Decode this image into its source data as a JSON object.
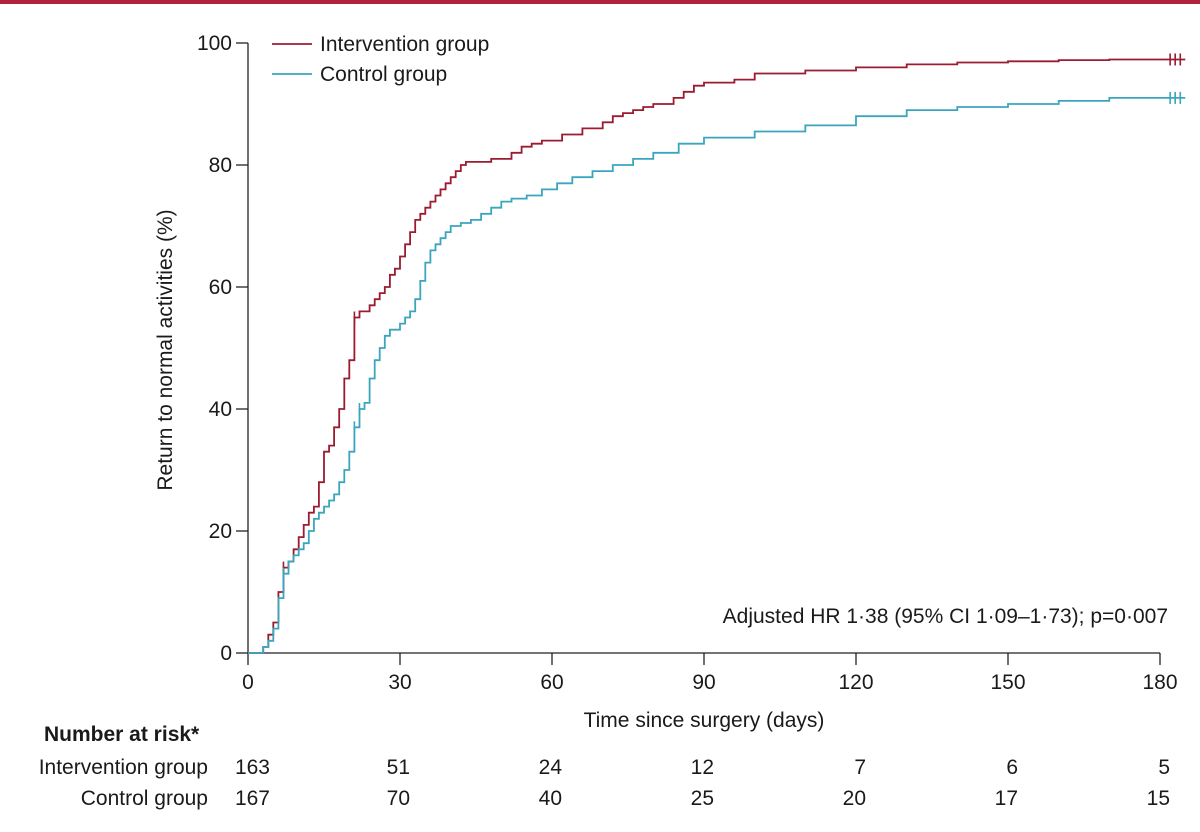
{
  "chart_data": {
    "type": "line",
    "step": true,
    "xlabel": "Time since surgery (days)",
    "ylabel": "Return to normal activities (%)",
    "xlim": [
      0,
      180
    ],
    "ylim": [
      0,
      100
    ],
    "xticks": [
      0,
      30,
      60,
      90,
      120,
      150,
      180
    ],
    "yticks": [
      0,
      20,
      40,
      60,
      80,
      100
    ],
    "grid": false,
    "legend_position": "top-left",
    "annotation": "Adjusted HR 1·38 (95% CI 1·09–1·73); p=0·007",
    "series": [
      {
        "name": "Intervention group",
        "color": "#9b1b30",
        "x": [
          0,
          3,
          4,
          5,
          6,
          7,
          8,
          9,
          10,
          11,
          12,
          13,
          14,
          15,
          16,
          17,
          18,
          19,
          20,
          21,
          22,
          24,
          25,
          26,
          27,
          28,
          29,
          30,
          31,
          32,
          33,
          34,
          35,
          36,
          37,
          38,
          39,
          40,
          41,
          42,
          43,
          44,
          48,
          52,
          54,
          56,
          58,
          62,
          66,
          70,
          72,
          74,
          76,
          78,
          80,
          84,
          86,
          88,
          90,
          96,
          100,
          110,
          120,
          130,
          140,
          150,
          160,
          170,
          185
        ],
        "y": [
          0,
          1,
          3,
          5,
          10,
          14,
          15,
          17,
          19,
          21,
          23,
          24,
          28,
          33,
          34,
          37,
          40,
          45,
          48,
          55,
          56,
          57,
          58,
          59,
          60,
          62,
          63,
          65,
          67,
          69,
          71,
          72,
          73,
          74,
          75,
          76,
          77,
          78,
          79,
          80,
          80.5,
          80.5,
          81,
          82,
          83,
          83.5,
          84,
          85,
          86,
          87,
          88,
          88.5,
          89,
          89.5,
          90,
          91,
          92,
          93,
          93.5,
          94,
          95,
          95.5,
          96,
          96.5,
          96.8,
          97,
          97.2,
          97.3,
          97.3
        ],
        "censor_x": [
          7,
          21,
          182,
          183,
          184
        ]
      },
      {
        "name": "Control group",
        "color": "#3aa6be",
        "x": [
          0,
          3,
          4,
          5,
          6,
          7,
          8,
          9,
          10,
          11,
          12,
          13,
          14,
          15,
          16,
          17,
          18,
          19,
          20,
          21,
          22,
          23,
          24,
          25,
          26,
          27,
          28,
          30,
          31,
          32,
          33,
          34,
          35,
          36,
          37,
          38,
          39,
          40,
          42,
          44,
          46,
          48,
          50,
          52,
          55,
          58,
          61,
          64,
          68,
          72,
          76,
          80,
          85,
          90,
          100,
          110,
          120,
          130,
          140,
          150,
          160,
          170,
          185
        ],
        "y": [
          0,
          1,
          2,
          4,
          9,
          13,
          15,
          16,
          17,
          18,
          20,
          22,
          23,
          24,
          25,
          26,
          28,
          30,
          33,
          37,
          40,
          41,
          45,
          48,
          50,
          52,
          53,
          54,
          55,
          56,
          58,
          61,
          64,
          66,
          67,
          68,
          69,
          70,
          70.5,
          71,
          72,
          73,
          74,
          74.5,
          75,
          76,
          77,
          78,
          79,
          80,
          81,
          82,
          83.5,
          84.5,
          85.5,
          86.5,
          88,
          89,
          89.5,
          90,
          90.5,
          91,
          91
        ],
        "censor_x": [
          7,
          21,
          22,
          182,
          183,
          184
        ]
      }
    ]
  },
  "risk_table": {
    "title": "Number at risk*",
    "times": [
      0,
      30,
      60,
      90,
      120,
      150,
      180
    ],
    "rows": [
      {
        "label": "Intervention group",
        "values": [
          "163",
          "51",
          "24",
          "12",
          "7",
          "6",
          "5"
        ]
      },
      {
        "label": "Control group",
        "values": [
          "167",
          "70",
          "40",
          "25",
          "20",
          "17",
          "15"
        ]
      }
    ]
  },
  "colors": {
    "accent_rule": "#b0233d",
    "intervention": "#9b1b30",
    "control": "#3aa6be"
  }
}
